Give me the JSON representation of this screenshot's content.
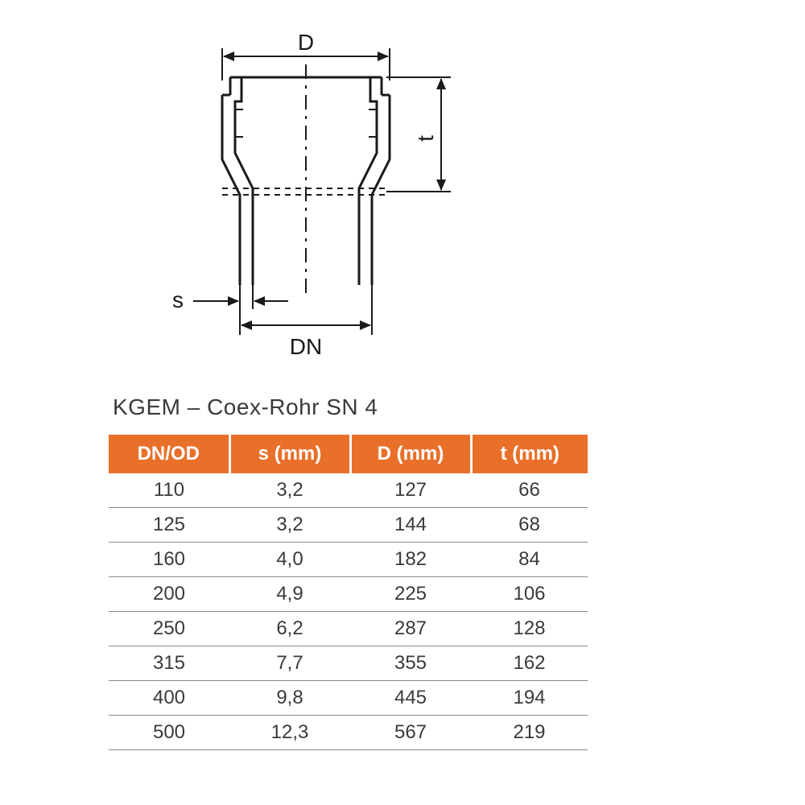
{
  "diagram": {
    "labels": {
      "D": "D",
      "t": "t",
      "s": "s",
      "DN": "DN"
    },
    "line_color": "#1a1a1a",
    "line_width_main": 3,
    "line_width_dim": 2,
    "dash_pattern": "10,8",
    "short_dash": "6,5",
    "font_size_label": 28,
    "text_color": "#1a1a1a"
  },
  "title": "KGEM – Coex-Rohr SN 4",
  "table": {
    "header_bg": "#e8702a",
    "header_fg": "#ffffff",
    "row_border": "#888888",
    "text_color": "#3a3a3a",
    "font_size_header": 24,
    "font_size_cell": 24,
    "columns": [
      "DN/OD",
      "s (mm)",
      "D (mm)",
      "t (mm)"
    ],
    "rows": [
      [
        "110",
        "3,2",
        "127",
        "66"
      ],
      [
        "125",
        "3,2",
        "144",
        "68"
      ],
      [
        "160",
        "4,0",
        "182",
        "84"
      ],
      [
        "200",
        "4,9",
        "225",
        "106"
      ],
      [
        "250",
        "6,2",
        "287",
        "128"
      ],
      [
        "315",
        "7,7",
        "355",
        "162"
      ],
      [
        "400",
        "9,8",
        "445",
        "194"
      ],
      [
        "500",
        "12,3",
        "567",
        "219"
      ]
    ]
  }
}
